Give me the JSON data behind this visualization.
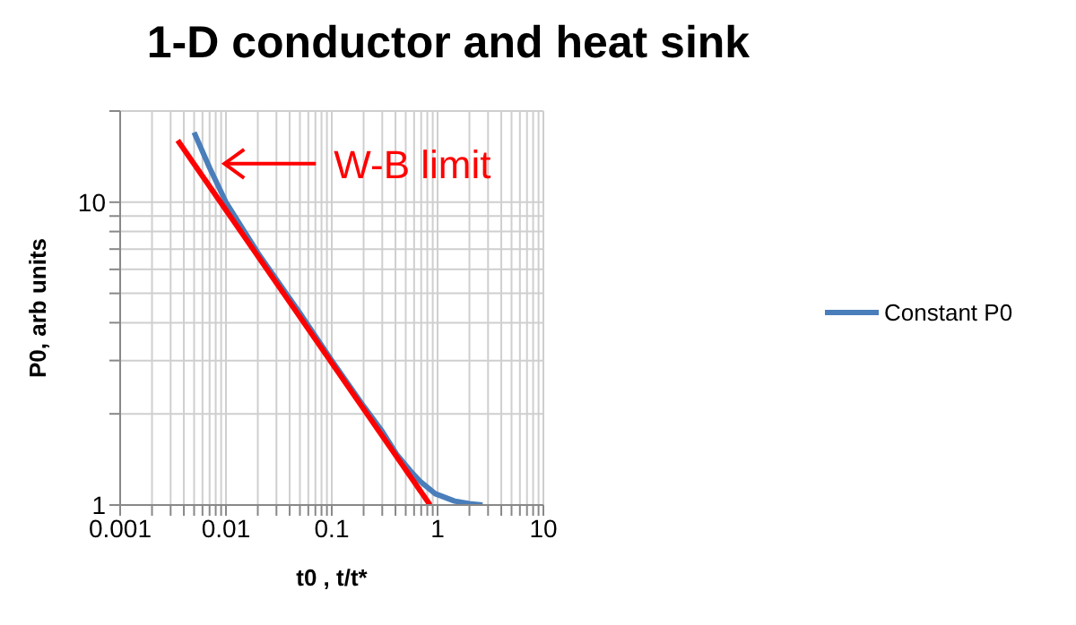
{
  "chart_data": {
    "type": "line",
    "title": "1-D conductor and heat sink",
    "xlabel": "t0 , t/t*",
    "ylabel": "P0, arb units",
    "log": "xy",
    "grid": true,
    "legend": "right",
    "marker": "none",
    "xlim": [
      0.001,
      10
    ],
    "xticks": [
      0.001,
      {
        "value": 0.002,
        "label": null
      },
      {
        "value": 0.003,
        "label": null
      },
      {
        "value": 0.004,
        "label": null
      },
      {
        "value": 0.005,
        "label": null
      },
      {
        "value": 0.006,
        "label": null
      },
      {
        "value": 0.007,
        "label": null
      },
      {
        "value": 0.008,
        "label": null
      },
      {
        "value": 0.009,
        "label": null
      },
      0.01,
      {
        "value": 0.02,
        "label": null
      },
      {
        "value": 0.03,
        "label": null
      },
      {
        "value": 0.04,
        "label": null
      },
      {
        "value": 0.05,
        "label": null
      },
      {
        "value": 0.06,
        "label": null
      },
      {
        "value": 0.07,
        "label": null
      },
      {
        "value": 0.08,
        "label": null
      },
      {
        "value": 0.09,
        "label": null
      },
      0.1,
      {
        "value": 0.2,
        "label": null
      },
      {
        "value": 0.3,
        "label": null
      },
      {
        "value": 0.4,
        "label": null
      },
      {
        "value": 0.5,
        "label": null
      },
      {
        "value": 0.6,
        "label": null
      },
      {
        "value": 0.7,
        "label": null
      },
      {
        "value": 0.8,
        "label": null
      },
      {
        "value": 0.9,
        "label": null
      },
      1,
      {
        "value": 2,
        "label": null
      },
      {
        "value": 3,
        "label": null
      },
      {
        "value": 4,
        "label": null
      },
      {
        "value": 5,
        "label": null
      },
      {
        "value": 6,
        "label": null
      },
      {
        "value": 7,
        "label": null
      },
      {
        "value": 8,
        "label": null
      },
      {
        "value": 9,
        "label": null
      },
      10
    ],
    "ylim": [
      1,
      20
    ],
    "yticks": [
      1,
      {
        "value": 2,
        "label": null
      },
      {
        "value": 3,
        "label": null
      },
      {
        "value": 4,
        "label": null
      },
      {
        "value": 5,
        "label": null
      },
      {
        "value": 6,
        "label": null
      },
      {
        "value": 7,
        "label": null
      },
      {
        "value": 8,
        "label": null
      },
      {
        "value": 9,
        "label": null
      },
      10,
      {
        "value": 20,
        "label": null
      }
    ],
    "series": [
      {
        "name": "Constant P0",
        "color": "#4a7ebb",
        "x": [
          0.005,
          0.007,
          0.01,
          0.02,
          0.05,
          0.1,
          0.2,
          0.3,
          0.41,
          0.55,
          0.68,
          0.95,
          1.45,
          2,
          2.66
        ],
        "values": [
          17,
          13,
          10,
          6.8,
          4.3,
          3.0,
          2.12,
          1.75,
          1.47,
          1.3,
          1.2,
          1.09,
          1.03,
          1.01,
          1.0
        ]
      },
      {
        "type": "line",
        "color": "#ff0000",
        "x": [
          0.0035,
          0.85
        ],
        "values": [
          16,
          1
        ]
      }
    ],
    "annotations": [
      {
        "text": "W-B limit",
        "x": 0.0086,
        "y": 13.4
      }
    ]
  }
}
